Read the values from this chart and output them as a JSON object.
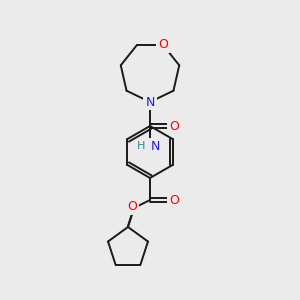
{
  "background_color": "#ebebeb",
  "bond_color": "#1a1a1a",
  "atom_colors": {
    "O": "#ff0000",
    "N": "#1a1aee",
    "NH": "#2a8888",
    "C": "#1a1a1a"
  },
  "fig_width": 3.0,
  "fig_height": 3.0,
  "dpi": 100,
  "scale": 300
}
